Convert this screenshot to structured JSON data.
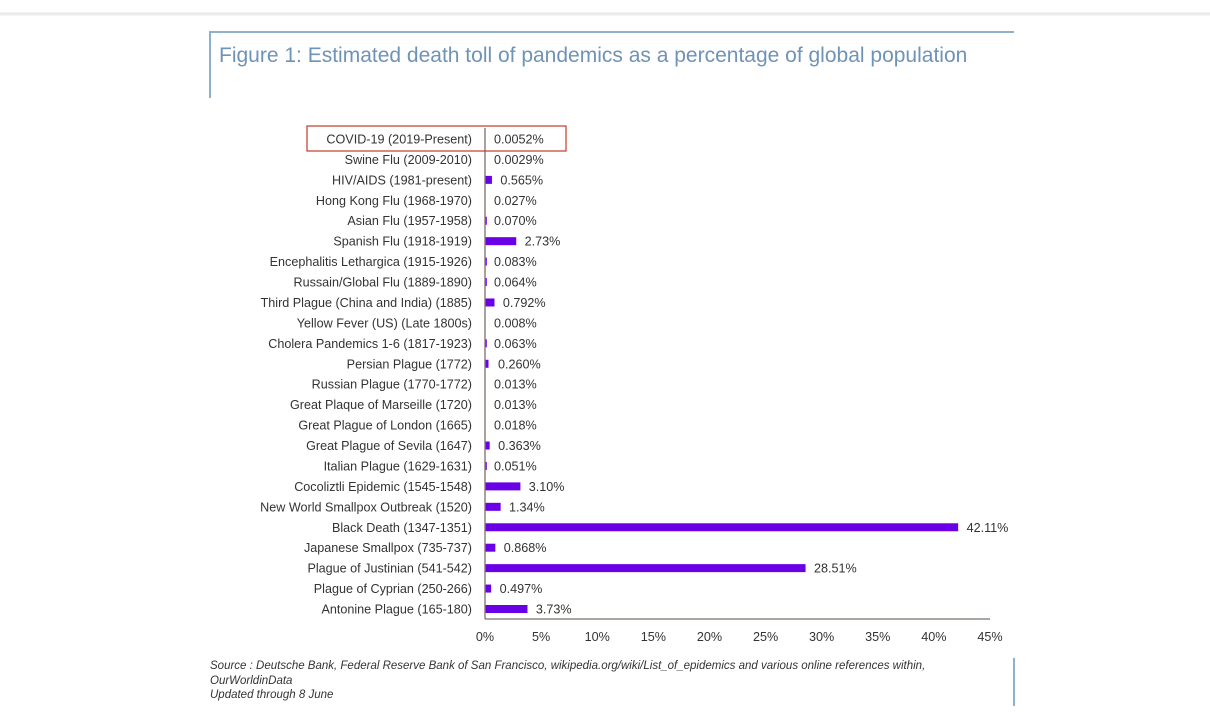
{
  "page": {
    "title": "Figure 1: Estimated death toll of pandemics as a percentage of global population",
    "source_lines": [
      "Source : Deutsche Bank, Federal Reserve Bank of San Francisco, wikipedia.org/wiki/List_of_epidemics and various online references within,",
      "OurWorldinData",
      "Updated through 8 June"
    ]
  },
  "colors": {
    "bar": "#6a00e6",
    "title": "#6f93b6",
    "frame": "#8fb1cc",
    "highlight_box": "#c0392b",
    "axis": "#7a6f6a",
    "text": "#333333"
  },
  "chart_data": {
    "type": "bar",
    "orientation": "horizontal",
    "title": "Figure 1: Estimated death toll of pandemics as a percentage of global population",
    "xlabel": "",
    "ylabel": "",
    "xlim": [
      0,
      45
    ],
    "grid": false,
    "legend": "none",
    "highlighted_category": "COVID-19 (2019-Present)",
    "categories": [
      "COVID-19 (2019-Present)",
      "Swine Flu (2009-2010)",
      "HIV/AIDS (1981-present)",
      "Hong Kong Flu (1968-1970)",
      "Asian Flu (1957-1958)",
      "Spanish Flu (1918-1919)",
      "Encephalitis Lethargica  (1915-1926)",
      "Russain/Global Flu  (1889-1890)",
      "Third Plague (China and India) (1885)",
      "Yellow Fever (US) (Late 1800s)",
      "Cholera Pandemics 1-6 (1817-1923)",
      "Persian Plague (1772)",
      "Russian Plague (1770-1772)",
      "Great Plaque of Marseille (1720)",
      "Great Plague of London (1665)",
      "Great Plague of Sevila (1647)",
      "Italian Plague (1629-1631)",
      "Cocoliztli Epidemic (1545-1548)",
      "New World Smallpox Outbreak (1520)",
      "Black Death (1347-1351)",
      "Japanese Smallpox (735-737)",
      "Plague of Justinian (541-542)",
      "Plague of Cyprian (250-266)",
      "Antonine Plague (165-180)"
    ],
    "values": [
      0.0052,
      0.0029,
      0.565,
      0.027,
      0.07,
      2.73,
      0.083,
      0.064,
      0.792,
      0.008,
      0.063,
      0.26,
      0.013,
      0.013,
      0.018,
      0.363,
      0.051,
      3.1,
      1.34,
      42.11,
      0.868,
      28.51,
      0.497,
      3.73
    ],
    "value_labels": [
      "0.0052%",
      "0.0029%",
      "0.565%",
      "0.027%",
      "0.070%",
      "2.73%",
      "0.083%",
      "0.064%",
      "0.792%",
      "0.008%",
      "0.063%",
      "0.260%",
      "0.013%",
      "0.013%",
      "0.018%",
      "0.363%",
      "0.051%",
      "3.10%",
      "1.34%",
      "42.11%",
      "0.868%",
      "28.51%",
      "0.497%",
      "3.73%"
    ],
    "x_ticks": [
      0,
      5,
      10,
      15,
      20,
      25,
      30,
      35,
      40,
      45
    ],
    "x_tick_labels": [
      "0%",
      "5%",
      "10%",
      "15%",
      "20%",
      "25%",
      "30%",
      "35%",
      "40%",
      "45%"
    ]
  }
}
